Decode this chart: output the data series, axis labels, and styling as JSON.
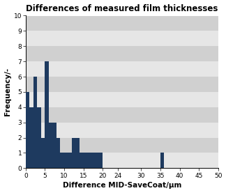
{
  "title": "Differences of measured film thicknesses",
  "xlabel": "Difference MID-SaveCoat/µm",
  "ylabel": "Frequency/-",
  "bar_color": "#1e3a5f",
  "stripe_colors": [
    "#e6e6e6",
    "#d0d0d0"
  ],
  "xlim": [
    0,
    50
  ],
  "ylim": [
    0,
    10
  ],
  "xticks": [
    0,
    5,
    10,
    15,
    20,
    24,
    30,
    35,
    40,
    45,
    50
  ],
  "yticks": [
    0,
    1,
    2,
    3,
    4,
    5,
    6,
    7,
    8,
    9,
    10
  ],
  "bar_positions": [
    0,
    1,
    2,
    3,
    4,
    5,
    6,
    7,
    8,
    9,
    10,
    11,
    12,
    13,
    14,
    15,
    16,
    17,
    18,
    19,
    35
  ],
  "bar_heights": [
    5,
    4,
    6,
    4,
    2,
    7,
    3,
    3,
    2,
    1,
    1,
    1,
    2,
    2,
    1,
    1,
    1,
    1,
    1,
    1,
    1
  ],
  "bar_width": 1.0,
  "title_fontsize": 8.5,
  "label_fontsize": 7.5,
  "tick_fontsize": 6.5
}
